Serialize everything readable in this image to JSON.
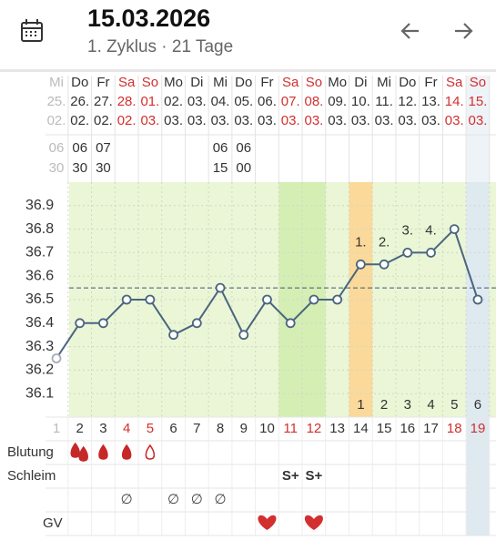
{
  "header": {
    "title": "15.03.2026",
    "subtitle": "1. Zyklus · 21 Tage"
  },
  "row_labels": {
    "bleeding": "Blutung",
    "mucus": "Schleim",
    "intercourse": "GV"
  },
  "chart": {
    "ylim": [
      36.0,
      37.0
    ],
    "yticks": [
      36.1,
      36.2,
      36.3,
      36.4,
      36.5,
      36.6,
      36.7,
      36.8,
      36.9
    ],
    "coverline": 36.55,
    "line_color": "#4a6580",
    "grid": true
  },
  "days": [
    {
      "weekday": "Mi",
      "date": "25.",
      "month": "02.",
      "hour": "06",
      "minute": "30",
      "temperature": 36.25,
      "cycle_day": 1,
      "faded": true
    },
    {
      "weekday": "Do",
      "date": "26.",
      "month": "02.",
      "hour": "06",
      "minute": "30",
      "temperature": 36.4,
      "cycle_day": 2
    },
    {
      "weekday": "Fr",
      "date": "27.",
      "month": "02.",
      "hour": "07",
      "minute": "30",
      "temperature": 36.4,
      "cycle_day": 3
    },
    {
      "weekday": "Sa",
      "date": "28.",
      "month": "02.",
      "temperature": 36.5,
      "cycle_day": 4,
      "red": true,
      "cervix": "∅"
    },
    {
      "weekday": "So",
      "date": "01.",
      "month": "03.",
      "temperature": 36.5,
      "cycle_day": 5,
      "red": true
    },
    {
      "weekday": "Mo",
      "date": "02.",
      "month": "03.",
      "temperature": 36.35,
      "cycle_day": 6,
      "cervix": "∅"
    },
    {
      "weekday": "Di",
      "date": "03.",
      "month": "03.",
      "temperature": 36.4,
      "cycle_day": 7,
      "cervix": "∅"
    },
    {
      "weekday": "Mi",
      "date": "04.",
      "month": "03.",
      "hour": "06",
      "minute": "15",
      "temperature": 36.55,
      "cycle_day": 8,
      "cervix": "∅"
    },
    {
      "weekday": "Do",
      "date": "05.",
      "month": "03.",
      "hour": "06",
      "minute": "00",
      "temperature": 36.35,
      "cycle_day": 9
    },
    {
      "weekday": "Fr",
      "date": "06.",
      "month": "03.",
      "temperature": 36.5,
      "cycle_day": 10
    },
    {
      "weekday": "Sa",
      "date": "07.",
      "month": "03.",
      "temperature": 36.4,
      "cycle_day": 11,
      "red": true,
      "mucus": "S+"
    },
    {
      "weekday": "So",
      "date": "08.",
      "month": "03.",
      "temperature": 36.5,
      "cycle_day": 12,
      "red": true,
      "mucus": "S+"
    },
    {
      "weekday": "Mo",
      "date": "09.",
      "month": "03.",
      "temperature": 36.5,
      "cycle_day": 13
    },
    {
      "weekday": "Di",
      "date": "10.",
      "month": "03.",
      "temperature": 36.65,
      "cycle_day": 14,
      "shift_label": "1.",
      "count": 1
    },
    {
      "weekday": "Mi",
      "date": "11.",
      "month": "03.",
      "temperature": 36.65,
      "cycle_day": 15,
      "shift_label": "2.",
      "count": 2
    },
    {
      "weekday": "Do",
      "date": "12.",
      "month": "03.",
      "temperature": 36.7,
      "cycle_day": 16,
      "shift_label": "3.",
      "count": 3
    },
    {
      "weekday": "Fr",
      "date": "13.",
      "month": "03.",
      "temperature": 36.7,
      "cycle_day": 17,
      "shift_label": "4.",
      "count": 4
    },
    {
      "weekday": "Sa",
      "date": "14.",
      "month": "03.",
      "temperature": 36.8,
      "cycle_day": 18,
      "red": true,
      "count": 5
    },
    {
      "weekday": "So",
      "date": "15.",
      "month": "03.",
      "temperature": 36.5,
      "cycle_day": 19,
      "red": true,
      "count": 6
    }
  ]
}
